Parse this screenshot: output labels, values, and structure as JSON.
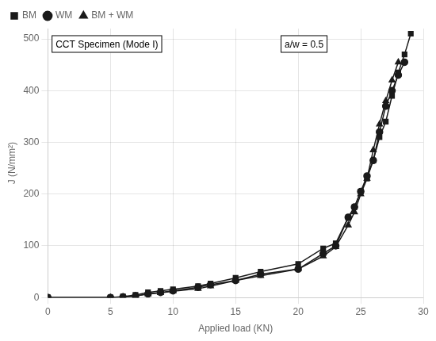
{
  "chart_data": {
    "type": "line",
    "xlabel": "Applied load (KN)",
    "ylabel": "J (N/mm²)",
    "xlim": [
      0,
      30
    ],
    "ylim": [
      0,
      520
    ],
    "xticks": [
      0,
      5,
      10,
      15,
      20,
      25,
      30
    ],
    "yticks": [
      0,
      100,
      200,
      300,
      400,
      500
    ],
    "grid": true,
    "legend": "upper left",
    "annotations": [
      "a/w = 0.5",
      "CCT Specimen (Mode I)"
    ],
    "series": [
      {
        "name": "BM",
        "color": "#1a1a1a",
        "marker": "square",
        "line_style": "solid",
        "x": [
          0,
          5,
          6,
          7,
          8,
          9,
          10,
          12,
          13,
          15,
          17,
          20,
          22,
          23,
          24,
          24.5,
          25,
          25.5,
          26,
          26.5,
          27,
          27.5,
          28,
          28.5,
          29
        ],
        "values": [
          0,
          0,
          2,
          5,
          10,
          13,
          16,
          22,
          27,
          38,
          50,
          65,
          95,
          105,
          155,
          175,
          205,
          230,
          265,
          310,
          340,
          390,
          435,
          470,
          510
        ]
      },
      {
        "name": "WM",
        "color": "#1a1a1a",
        "marker": "circle",
        "line_style": "solid",
        "x": [
          0,
          5,
          6,
          7,
          8,
          9,
          10,
          12,
          13,
          15,
          17,
          20,
          22,
          23,
          24,
          24.5,
          25,
          25.5,
          26,
          26.5,
          27,
          27.5,
          28,
          28.5
        ],
        "values": [
          0,
          0,
          1,
          3,
          7,
          10,
          13,
          20,
          25,
          33,
          45,
          55,
          85,
          100,
          155,
          175,
          205,
          235,
          265,
          320,
          370,
          400,
          430,
          455
        ]
      },
      {
        "name": "BM + WM",
        "color": "#1a1a1a",
        "marker": "triangle",
        "line_style": "solid",
        "x": [
          0,
          5,
          6,
          7,
          8,
          9,
          10,
          12,
          13,
          15,
          17,
          20,
          22,
          23,
          24,
          24.5,
          25,
          25.5,
          26,
          26.5,
          27,
          27.5,
          28
        ],
        "values": [
          0,
          0,
          1,
          3,
          7,
          9,
          12,
          17,
          22,
          33,
          42,
          55,
          80,
          98,
          140,
          165,
          200,
          230,
          285,
          335,
          380,
          420,
          455
        ]
      }
    ]
  }
}
